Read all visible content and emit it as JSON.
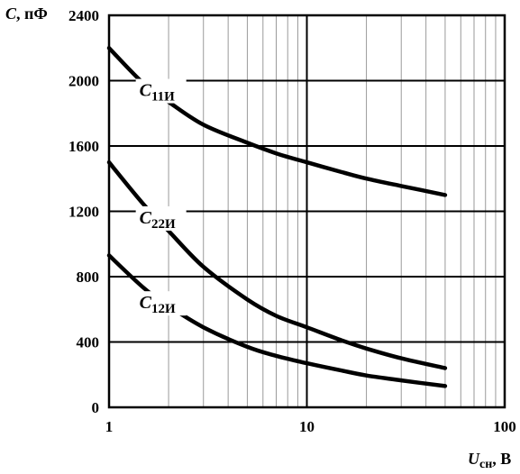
{
  "chart_data": {
    "type": "line",
    "xscale": "log",
    "xlim": [
      1,
      100
    ],
    "ylim": [
      0,
      2400
    ],
    "grid": true,
    "ylabel": {
      "symbol": "C",
      "unit": ", пФ"
    },
    "xlabel": {
      "symbol": "U",
      "subscript": "сн",
      "unit": ", В"
    },
    "xticks": [
      "1",
      "10",
      "100"
    ],
    "yticks": [
      "0",
      "400",
      "800",
      "1200",
      "1600",
      "2000",
      "2400"
    ],
    "series": [
      {
        "name": "C11И",
        "label_main": "C",
        "label_sub": "11И",
        "x": [
          1,
          1.5,
          2,
          3,
          5,
          7,
          10,
          15,
          20,
          30,
          50
        ],
        "y": [
          2200,
          1980,
          1870,
          1730,
          1620,
          1555,
          1500,
          1440,
          1400,
          1355,
          1300
        ]
      },
      {
        "name": "C22И",
        "label_main": "C",
        "label_sub": "22И",
        "x": [
          1,
          1.5,
          2,
          3,
          5,
          7,
          10,
          15,
          20,
          30,
          50
        ],
        "y": [
          1500,
          1240,
          1080,
          860,
          660,
          560,
          490,
          410,
          360,
          300,
          240
        ]
      },
      {
        "name": "C12И",
        "label_main": "C",
        "label_sub": "12И",
        "x": [
          1,
          1.5,
          2,
          3,
          5,
          7,
          10,
          15,
          20,
          30,
          50
        ],
        "y": [
          930,
          730,
          620,
          490,
          370,
          315,
          270,
          225,
          195,
          165,
          130
        ]
      }
    ]
  }
}
